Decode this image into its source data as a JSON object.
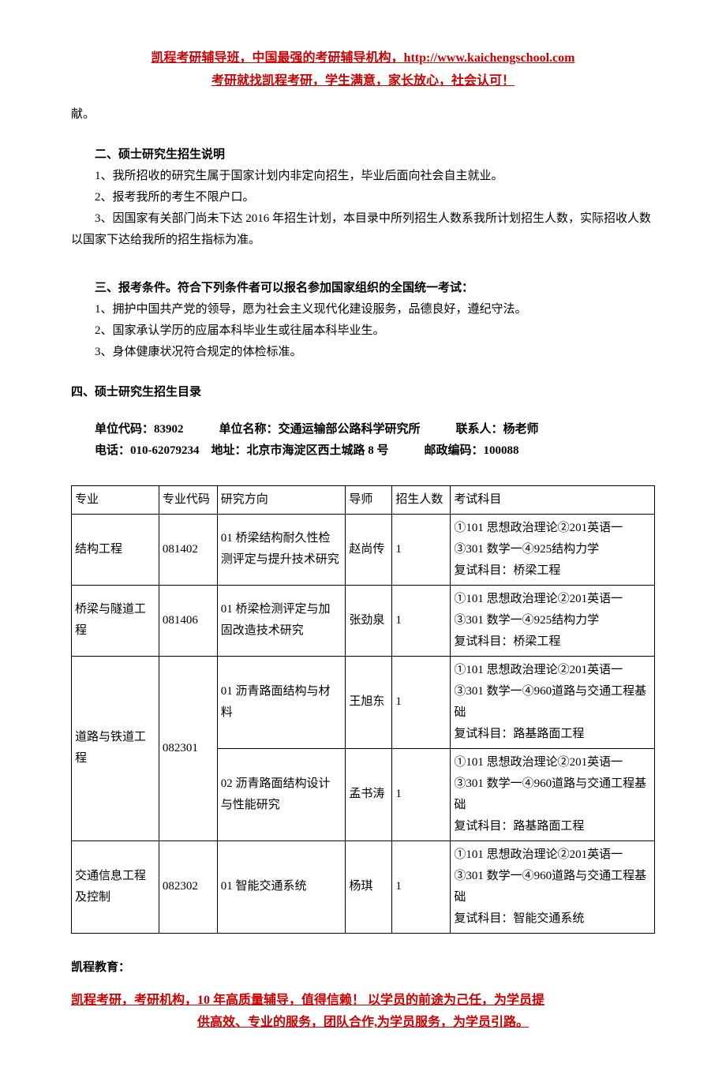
{
  "header": {
    "line1": "凯程考研辅导班，中国最强的考研辅导机构，http://www.kaichengschool.com",
    "line2": "考研就找凯程考研，学生满意，家长放心，社会认可！"
  },
  "leading_fragment": "献。",
  "section2": {
    "title": "二、硕士研究生招生说明",
    "items": [
      "1、我所招收的研究生属于国家计划内非定向招生，毕业后面向社会自主就业。",
      "2、报考我所的考生不限户口。",
      "3、因国家有关部门尚未下达 2016 年招生计划，本目录中所列招生人数系我所计划招生人数，实际招收人数以国家下达给我所的招生指标为准。"
    ]
  },
  "section3": {
    "title": "三、报考条件。符合下列条件者可以报名参加国家组织的全国统一考试：",
    "items": [
      "1、拥护中国共产党的领导，愿为社会主义现代化建设服务，品德良好，遵纪守法。",
      "2、国家承认学历的应届本科毕业生或往届本科毕业生。",
      "3、身体健康状况符合规定的体检标准。"
    ]
  },
  "section4": {
    "title": "四、硕士研究生招生目录",
    "meta": {
      "row1": "单位代码：83902　　　单位名称：交通运输部公路科学研究所　　　联系人：杨老师",
      "row2": "电话：010-62079234　地址：北京市海淀区西土城路 8 号　　　邮政编码：100088"
    }
  },
  "table": {
    "headers": [
      "专业",
      "专业代码",
      "研究方向",
      "导师",
      "招生人数",
      "考试科目"
    ],
    "rows": [
      {
        "major": "结构工程",
        "code": "081402",
        "direction": "01 桥梁结构耐久性检测评定与提升技术研究",
        "tutor": "赵尚传",
        "num": "1",
        "exam": "①101 思想政治理论②201英语一③301 数学一④925结构力学\n复试科目：桥梁工程"
      },
      {
        "major": "桥梁与隧道工程",
        "code": "081406",
        "direction": "01 桥梁检测评定与加固改造技术研究",
        "tutor": "张劲泉",
        "num": "1",
        "exam": "①101 思想政治理论②201英语一③301 数学一④925结构力学\n复试科目：桥梁工程"
      },
      {
        "major": "道路与铁道工程",
        "code": "082301",
        "direction_a": "01 沥青路面结构与材料",
        "tutor_a": "王旭东",
        "num_a": "1",
        "exam_a": "①101 思想政治理论②201英语一③301 数学一④960道路与交通工程基础\n复试科目：路基路面工程",
        "direction_b": "02 沥青路面结构设计与性能研究",
        "tutor_b": "孟书涛",
        "num_b": "1",
        "exam_b": "①101 思想政治理论②201英语一③301 数学一④960道路与交通工程基础\n复试科目：路基路面工程"
      },
      {
        "major": "交通信息工程及控制",
        "code": "082302",
        "direction": "01 智能交通系统",
        "tutor": "杨琪",
        "num": "1",
        "exam": "①101 思想政治理论②201英语一③301 数学一④960道路与交通工程基础\n复试科目：智能交通系统"
      }
    ]
  },
  "footer": {
    "brand": "凯程教育：",
    "line1": "凯程考研，考研机构，10 年高质量辅导，值得信赖！  以学员的前途为己任，为学员提",
    "line2": "供高效、专业的服务，团队合作,为学员服务，为学员引路。"
  }
}
